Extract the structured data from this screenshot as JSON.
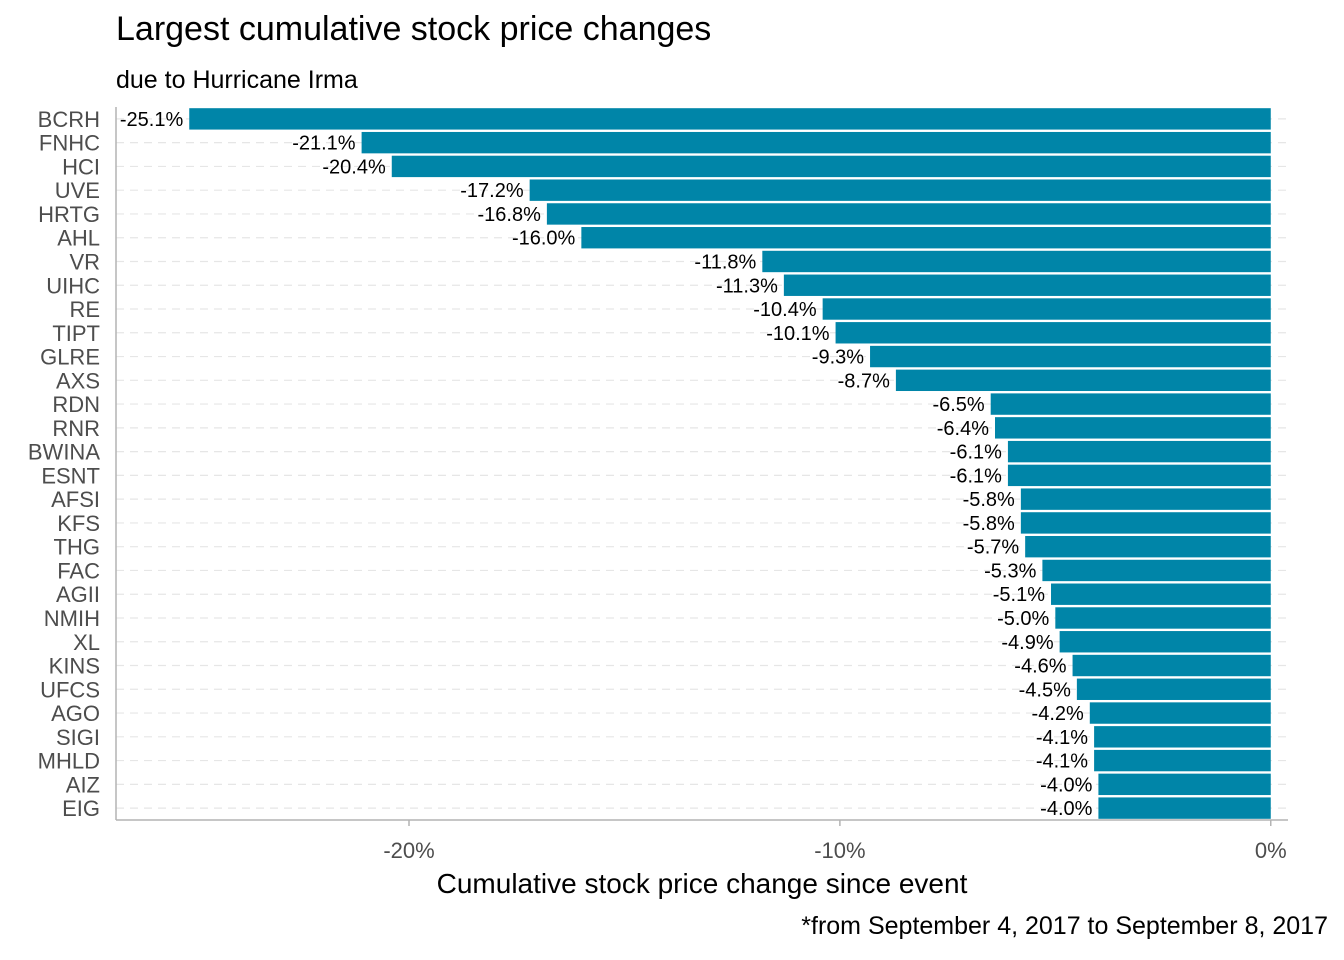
{
  "chart_data": {
    "type": "bar",
    "orientation": "horizontal",
    "title": "Largest cumulative stock price changes",
    "subtitle": "due to Hurricane Irma",
    "xlabel": "Cumulative stock price change since event",
    "ylabel": "",
    "caption": "*from September 4, 2017 to September 8, 2017",
    "categories": [
      "BCRH",
      "FNHC",
      "HCI",
      "UVE",
      "HRTG",
      "AHL",
      "VR",
      "UIHC",
      "RE",
      "TIPT",
      "GLRE",
      "AXS",
      "RDN",
      "RNR",
      "BWINA",
      "ESNT",
      "AFSI",
      "KFS",
      "THG",
      "FAC",
      "AGII",
      "NMIH",
      "XL",
      "KINS",
      "UFCS",
      "AGO",
      "SIGI",
      "MHLD",
      "AIZ",
      "EIG"
    ],
    "values": [
      -25.1,
      -21.1,
      -20.4,
      -17.2,
      -16.8,
      -16.0,
      -11.8,
      -11.3,
      -10.4,
      -10.1,
      -9.3,
      -8.7,
      -6.5,
      -6.4,
      -6.1,
      -6.1,
      -5.8,
      -5.8,
      -5.7,
      -5.3,
      -5.1,
      -5.0,
      -4.9,
      -4.6,
      -4.5,
      -4.2,
      -4.1,
      -4.1,
      -4.0,
      -4.0
    ],
    "data_labels": [
      "-25.1%",
      "-21.1%",
      "-20.4%",
      "-17.2%",
      "-16.8%",
      "-16.0%",
      "-11.8%",
      "-11.3%",
      "-10.4%",
      "-10.1%",
      "-9.3%",
      "-8.7%",
      "-6.5%",
      "-6.4%",
      "-6.1%",
      "-6.1%",
      "-5.8%",
      "-5.8%",
      "-5.7%",
      "-5.3%",
      "-5.1%",
      "-5.0%",
      "-4.9%",
      "-4.6%",
      "-4.5%",
      "-4.2%",
      "-4.1%",
      "-4.1%",
      "-4.0%",
      "-4.0%"
    ],
    "xlim": [
      -26.8,
      0.4
    ],
    "xticks": [
      -20,
      -10,
      0
    ],
    "xtick_labels": [
      "-20%",
      "-10%",
      "0%"
    ],
    "bar_color": "#0085A8",
    "grid": "horizontal-dashed",
    "legend": "none"
  }
}
